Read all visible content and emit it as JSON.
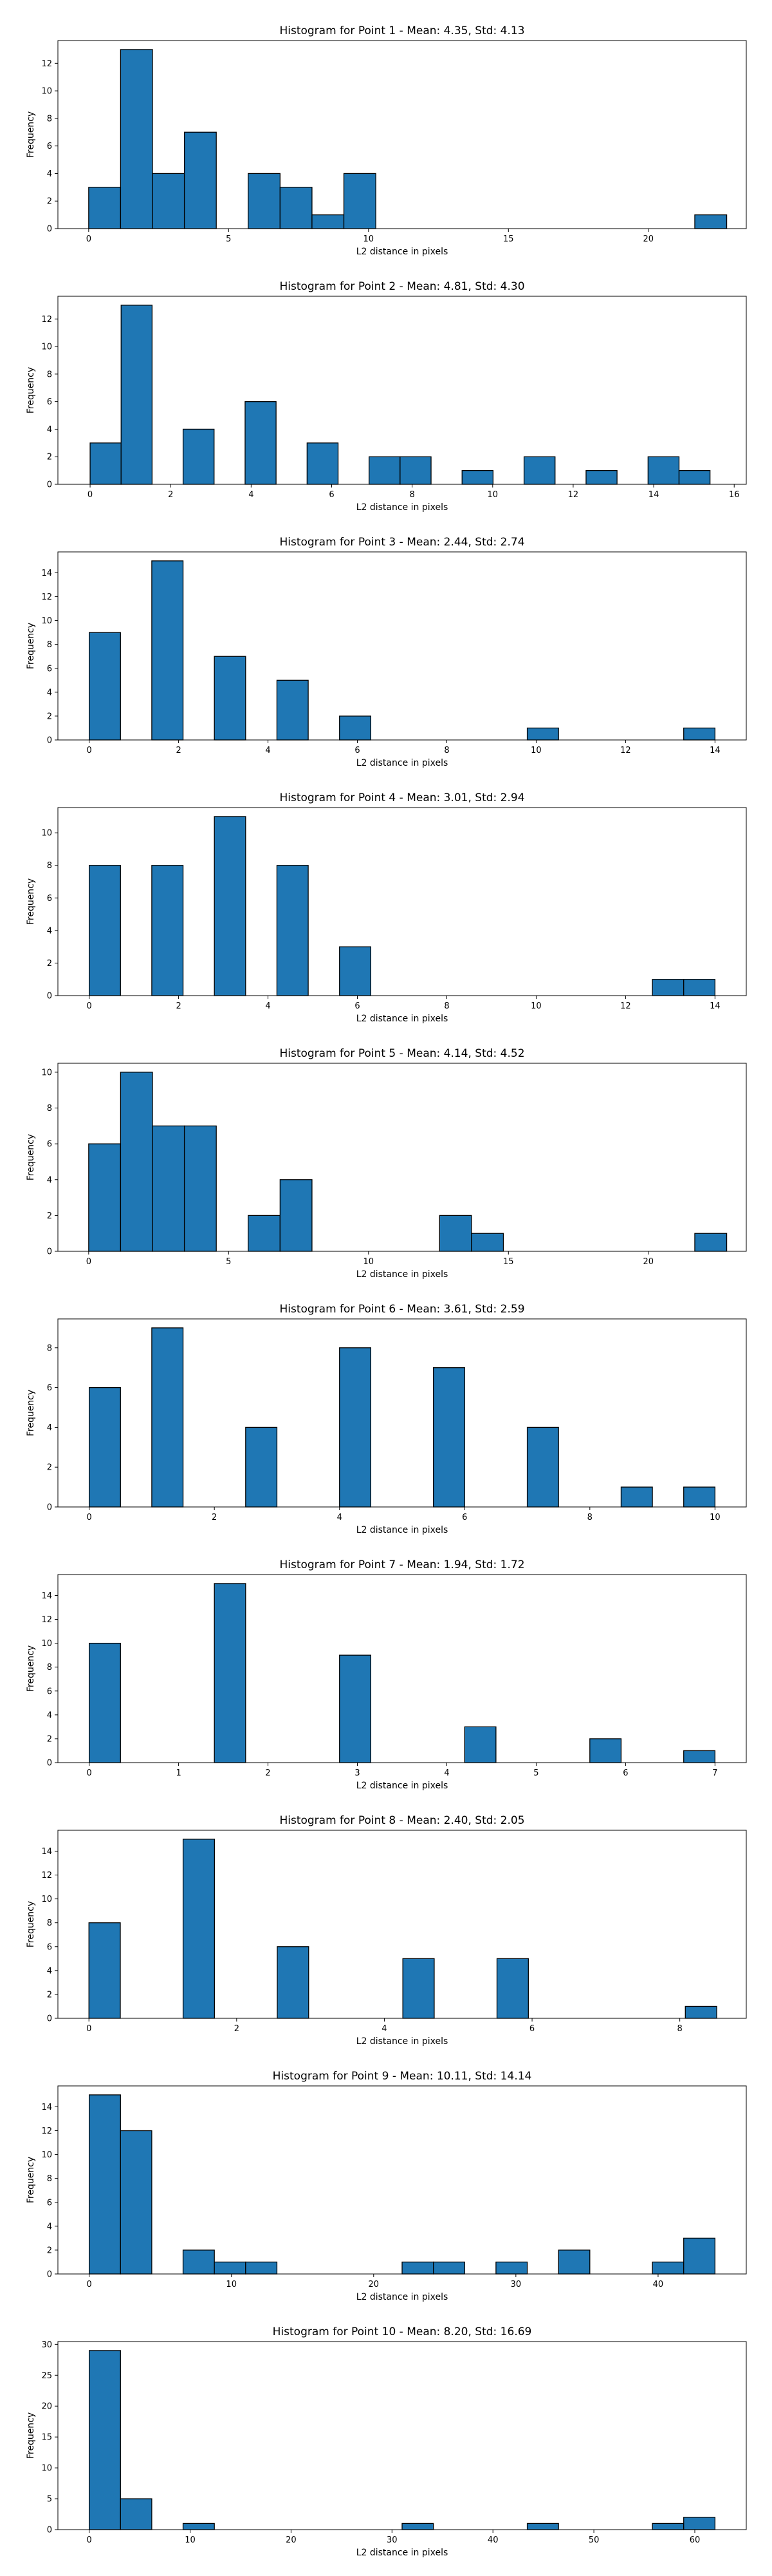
{
  "chart_data": [
    {
      "type": "bar",
      "title": "Histogram for Point 1 - Mean: 4.35, Std: 4.13",
      "xlabel": "L2 distance in pixels",
      "ylabel": "Frequency",
      "xlim": [
        -1.1,
        23.5
      ],
      "ylim": [
        0,
        13.65
      ],
      "xticks": [
        0,
        5,
        10,
        15,
        20
      ],
      "yticks": [
        0,
        2,
        4,
        6,
        8,
        10,
        12
      ],
      "bin_edges": [
        0.0,
        1.14,
        2.28,
        3.42,
        4.56,
        5.7,
        6.84,
        7.98,
        9.12,
        10.26,
        11.4,
        12.54,
        13.68,
        14.82,
        15.96,
        17.1,
        18.24,
        19.38,
        20.52,
        21.66,
        22.8
      ],
      "counts": [
        3,
        13,
        4,
        7,
        0,
        4,
        3,
        1,
        4,
        0,
        0,
        0,
        0,
        0,
        0,
        0,
        0,
        0,
        0,
        1
      ]
    },
    {
      "type": "bar",
      "title": "Histogram for Point 2 - Mean: 4.81, Std: 4.30",
      "xlabel": "L2 distance in pixels",
      "ylabel": "Frequency",
      "xlim": [
        -0.8,
        16.3
      ],
      "ylim": [
        0,
        13.65
      ],
      "xticks": [
        0,
        2,
        4,
        6,
        8,
        10,
        12,
        14,
        16
      ],
      "yticks": [
        0,
        2,
        4,
        6,
        8,
        10,
        12
      ],
      "bin_edges": [
        0.0,
        0.77,
        1.54,
        2.31,
        3.08,
        3.85,
        4.62,
        5.39,
        6.16,
        6.93,
        7.7,
        8.47,
        9.24,
        10.01,
        10.78,
        11.55,
        12.32,
        13.09,
        13.86,
        14.63,
        15.4
      ],
      "counts": [
        3,
        13,
        0,
        4,
        0,
        6,
        0,
        3,
        0,
        2,
        2,
        0,
        1,
        0,
        2,
        0,
        1,
        0,
        2,
        1
      ]
    },
    {
      "type": "bar",
      "title": "Histogram for Point 3 - Mean: 2.44, Std: 2.74",
      "xlabel": "L2 distance in pixels",
      "ylabel": "Frequency",
      "xlim": [
        -0.7,
        14.7
      ],
      "ylim": [
        0,
        15.75
      ],
      "xticks": [
        0,
        2,
        4,
        6,
        8,
        10,
        12,
        14
      ],
      "yticks": [
        0,
        2,
        4,
        6,
        8,
        10,
        12,
        14
      ],
      "bin_edges": [
        0.0,
        0.7,
        1.4,
        2.1,
        2.8,
        3.5,
        4.2,
        4.9,
        5.6,
        6.3,
        7.0,
        7.7,
        8.4,
        9.1,
        9.8,
        10.5,
        11.2,
        11.9,
        12.6,
        13.3,
        14.0
      ],
      "counts": [
        9,
        0,
        15,
        0,
        7,
        0,
        5,
        0,
        2,
        0,
        0,
        0,
        0,
        0,
        1,
        0,
        0,
        0,
        0,
        1
      ]
    },
    {
      "type": "bar",
      "title": "Histogram for Point 4 - Mean: 3.01, Std: 2.94",
      "xlabel": "L2 distance in pixels",
      "ylabel": "Frequency",
      "xlim": [
        -0.7,
        14.7
      ],
      "ylim": [
        0,
        11.55
      ],
      "xticks": [
        0,
        2,
        4,
        6,
        8,
        10,
        12,
        14
      ],
      "yticks": [
        0,
        2,
        4,
        6,
        8,
        10
      ],
      "bin_edges": [
        0.0,
        0.7,
        1.4,
        2.1,
        2.8,
        3.5,
        4.2,
        4.9,
        5.6,
        6.3,
        7.0,
        7.7,
        8.4,
        9.1,
        9.8,
        10.5,
        11.2,
        11.9,
        12.6,
        13.3,
        14.0
      ],
      "counts": [
        8,
        0,
        8,
        0,
        11,
        0,
        8,
        0,
        3,
        0,
        0,
        0,
        0,
        0,
        0,
        0,
        0,
        0,
        1,
        1
      ]
    },
    {
      "type": "bar",
      "title": "Histogram for Point 5 - Mean: 4.14, Std: 4.52",
      "xlabel": "L2 distance in pixels",
      "ylabel": "Frequency",
      "xlim": [
        -1.1,
        23.5
      ],
      "ylim": [
        0,
        10.5
      ],
      "xticks": [
        0,
        5,
        10,
        15,
        20
      ],
      "yticks": [
        0,
        2,
        4,
        6,
        8,
        10
      ],
      "bin_edges": [
        0.0,
        1.14,
        2.28,
        3.42,
        4.56,
        5.7,
        6.84,
        7.98,
        9.12,
        10.26,
        11.4,
        12.54,
        13.68,
        14.82,
        15.96,
        17.1,
        18.24,
        19.38,
        20.52,
        21.66,
        22.8
      ],
      "counts": [
        6,
        10,
        7,
        7,
        0,
        2,
        4,
        0,
        0,
        0,
        0,
        2,
        1,
        0,
        0,
        0,
        0,
        0,
        0,
        1
      ]
    },
    {
      "type": "bar",
      "title": "Histogram for Point 6 - Mean: 3.61, Std: 2.59",
      "xlabel": "L2 distance in pixels",
      "ylabel": "Frequency",
      "xlim": [
        -0.5,
        10.5
      ],
      "ylim": [
        0,
        9.45
      ],
      "xticks": [
        0,
        2,
        4,
        6,
        8,
        10
      ],
      "yticks": [
        0,
        2,
        4,
        6,
        8
      ],
      "bin_edges": [
        0.0,
        0.5,
        1.0,
        1.5,
        2.0,
        2.5,
        3.0,
        3.5,
        4.0,
        4.5,
        5.0,
        5.5,
        6.0,
        6.5,
        7.0,
        7.5,
        8.0,
        8.5,
        9.0,
        9.5,
        10.0
      ],
      "counts": [
        6,
        0,
        9,
        0,
        0,
        4,
        0,
        0,
        8,
        0,
        0,
        7,
        0,
        0,
        4,
        0,
        0,
        1,
        0,
        1
      ]
    },
    {
      "type": "bar",
      "title": "Histogram for Point 7 - Mean: 1.94, Std: 1.72",
      "xlabel": "L2 distance in pixels",
      "ylabel": "Frequency",
      "xlim": [
        -0.35,
        7.35
      ],
      "ylim": [
        0,
        15.75
      ],
      "xticks": [
        0,
        1,
        2,
        3,
        4,
        5,
        6,
        7
      ],
      "yticks": [
        0,
        2,
        4,
        6,
        8,
        10,
        12,
        14
      ],
      "bin_edges": [
        0.0,
        0.35,
        0.7,
        1.05,
        1.4,
        1.75,
        2.1,
        2.45,
        2.8,
        3.15,
        3.5,
        3.85,
        4.2,
        4.55,
        4.9,
        5.25,
        5.6,
        5.95,
        6.3,
        6.65,
        7.0
      ],
      "counts": [
        10,
        0,
        0,
        0,
        15,
        0,
        0,
        0,
        9,
        0,
        0,
        0,
        3,
        0,
        0,
        0,
        2,
        0,
        0,
        1
      ]
    },
    {
      "type": "bar",
      "title": "Histogram for Point 8 - Mean: 2.40, Std: 2.05",
      "xlabel": "L2 distance in pixels",
      "ylabel": "Frequency",
      "xlim": [
        -0.42,
        8.9
      ],
      "ylim": [
        0,
        15.75
      ],
      "xticks": [
        0,
        2,
        4,
        6,
        8
      ],
      "yticks": [
        0,
        2,
        4,
        6,
        8,
        10,
        12,
        14
      ],
      "bin_edges": [
        0.0,
        0.425,
        0.85,
        1.275,
        1.7,
        2.125,
        2.55,
        2.975,
        3.4,
        3.825,
        4.25,
        4.675,
        5.1,
        5.525,
        5.95,
        6.375,
        6.8,
        7.225,
        7.65,
        8.075,
        8.5
      ],
      "counts": [
        8,
        0,
        0,
        15,
        0,
        0,
        6,
        0,
        0,
        0,
        5,
        0,
        0,
        5,
        0,
        0,
        0,
        0,
        0,
        1
      ]
    },
    {
      "type": "bar",
      "title": "Histogram for Point 9 - Mean: 10.11, Std: 14.14",
      "xlabel": "L2 distance in pixels",
      "ylabel": "Frequency",
      "xlim": [
        -2.2,
        46.2
      ],
      "ylim": [
        0,
        15.75
      ],
      "xticks": [
        0,
        10,
        20,
        30,
        40
      ],
      "yticks": [
        0,
        2,
        4,
        6,
        8,
        10,
        12,
        14
      ],
      "bin_edges": [
        0.0,
        2.2,
        4.4,
        6.6,
        8.8,
        11.0,
        13.2,
        15.4,
        17.6,
        19.8,
        22.0,
        24.2,
        26.4,
        28.6,
        30.8,
        33.0,
        35.2,
        37.4,
        39.6,
        41.8,
        44.0
      ],
      "counts": [
        15,
        12,
        0,
        2,
        1,
        1,
        0,
        0,
        0,
        0,
        1,
        1,
        0,
        1,
        0,
        2,
        0,
        0,
        1,
        3
      ]
    },
    {
      "type": "bar",
      "title": "Histogram for Point 10 - Mean: 8.20, Std: 16.69",
      "xlabel": "L2 distance in pixels",
      "ylabel": "Frequency",
      "xlim": [
        -3.1,
        65.1
      ],
      "ylim": [
        0,
        30.45
      ],
      "xticks": [
        0,
        10,
        20,
        30,
        40,
        50,
        60
      ],
      "yticks": [
        0,
        5,
        10,
        15,
        20,
        25,
        30
      ],
      "bin_edges": [
        0.0,
        3.1,
        6.2,
        9.3,
        12.4,
        15.5,
        18.6,
        21.7,
        24.8,
        27.9,
        31.0,
        34.1,
        37.2,
        40.3,
        43.4,
        46.5,
        49.6,
        52.7,
        55.8,
        58.9,
        62.0
      ],
      "counts": [
        29,
        5,
        0,
        1,
        0,
        0,
        0,
        0,
        0,
        0,
        1,
        0,
        0,
        0,
        1,
        0,
        0,
        0,
        1,
        2
      ]
    }
  ]
}
